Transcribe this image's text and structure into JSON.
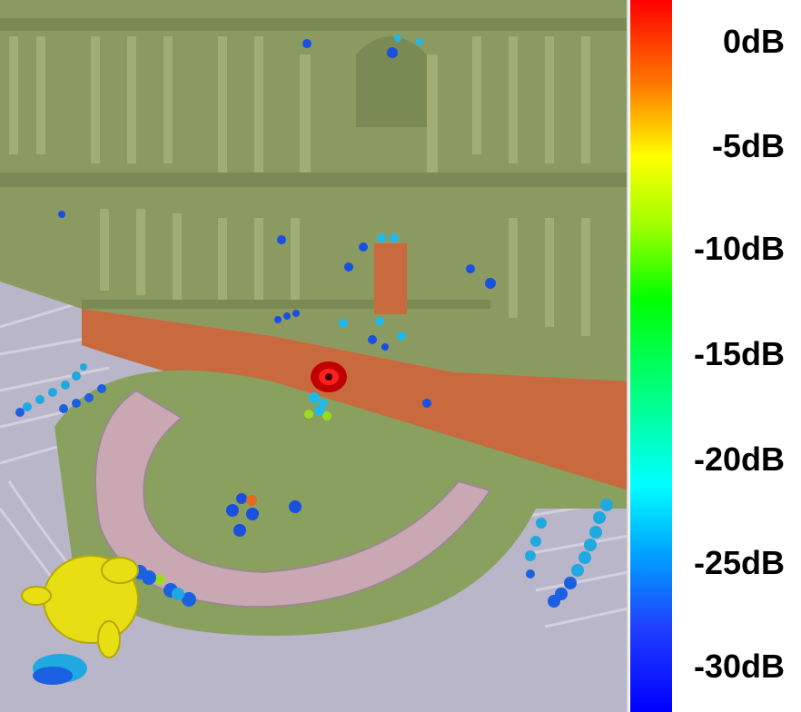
{
  "colorbar": {
    "labels": [
      "0dB",
      "-5dB",
      "-10dB",
      "-15dB",
      "-20dB",
      "-25dB",
      "-30dB"
    ],
    "colors": {
      "top": "#ff0000",
      "middle": "#00ff00",
      "bottom": "#0000ff"
    }
  },
  "scene": {
    "palette": {
      "building": "#8a9a60",
      "stage_floor": "#c8693e",
      "orchestra": "#8aa05f",
      "seating": "#b8b6c8",
      "ring": "#c9a8b4",
      "source": "#ff0000",
      "listener_head": "#e8de14"
    }
  }
}
